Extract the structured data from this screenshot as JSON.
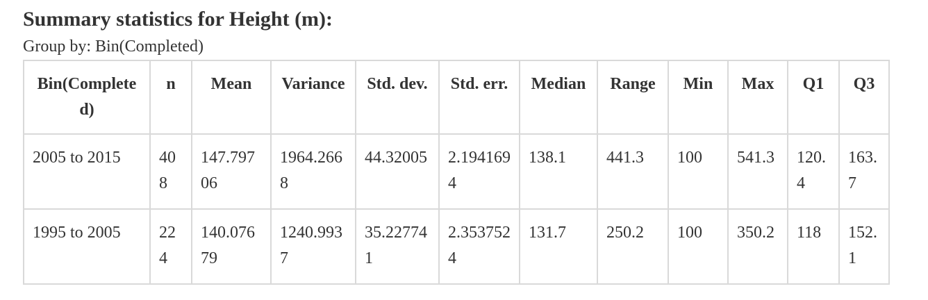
{
  "title": "Summary statistics for Height (m):",
  "group_by": "Group by: Bin(Completed)",
  "table": {
    "headers": [
      "Bin(Completed)",
      "n",
      "Mean",
      "Variance",
      "Std. dev.",
      "Std. err.",
      "Median",
      "Range",
      "Min",
      "Max",
      "Q1",
      "Q3"
    ],
    "rows": [
      [
        "2005 to 2015",
        "408",
        "147.79706",
        "1964.2668",
        "44.32005",
        "2.1941694",
        "138.1",
        "441.3",
        "100",
        "541.3",
        "120.4",
        "163.7"
      ],
      [
        "1995 to 2005",
        "224",
        "140.07679",
        "1240.9937",
        "35.227741",
        "2.3537524",
        "131.7",
        "250.2",
        "100",
        "350.2",
        "118",
        "152.1"
      ]
    ]
  }
}
